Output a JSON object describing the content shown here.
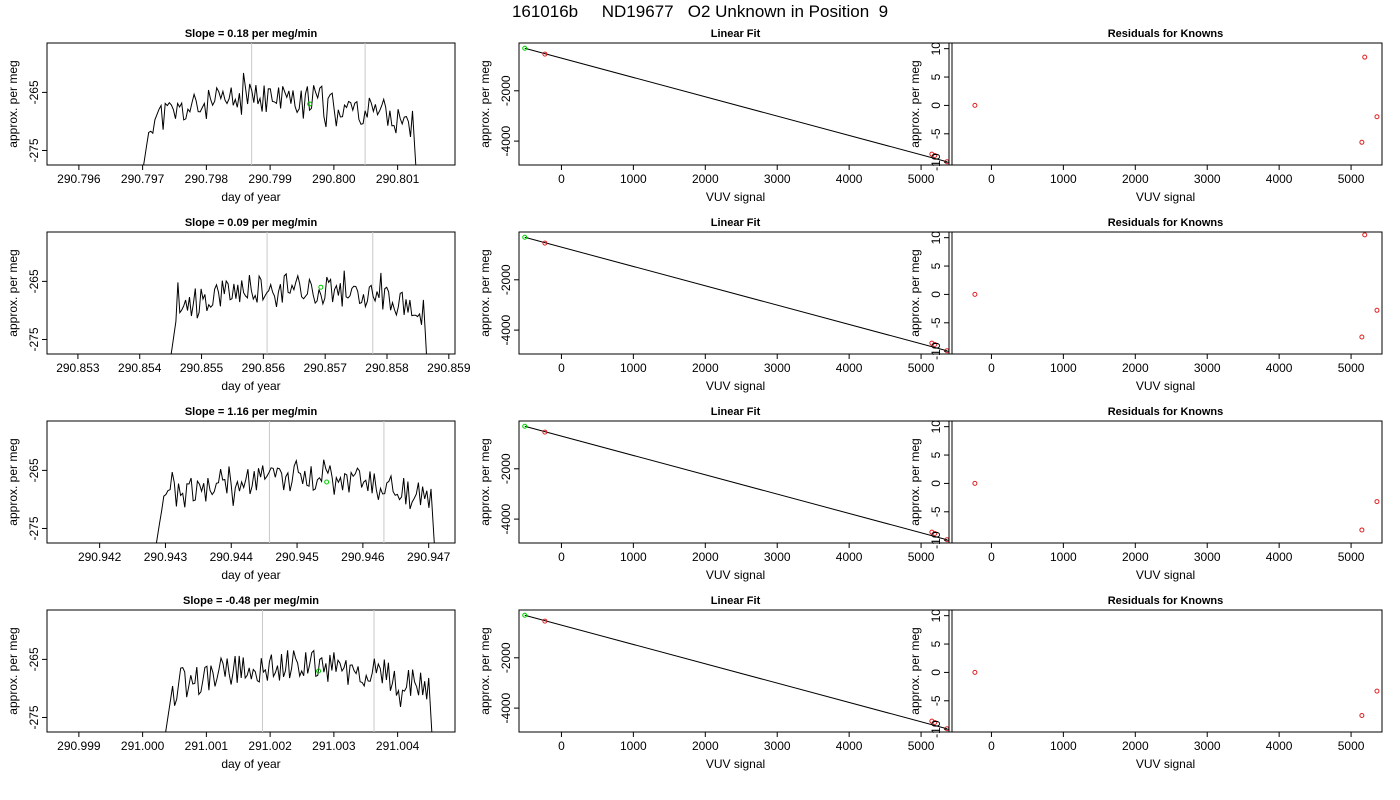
{
  "main_title": "161016b     ND19677   O2 Unknown in Position  9",
  "chart_data": [
    {
      "type": "line",
      "title": "Slope =  0.18  per meg/min",
      "xlabel": "day of year",
      "ylabel": "approx. per meg",
      "xlim": [
        290.7955,
        290.8019
      ],
      "ylim": [
        -277.5,
        -256.5
      ],
      "xticks": [
        290.796,
        290.797,
        290.798,
        290.799,
        290.8,
        290.801
      ],
      "xtick_labels": [
        "290.796",
        "290.797",
        "290.798",
        "290.799",
        "290.800",
        "290.801"
      ],
      "yticks": [
        -265,
        -275
      ],
      "ytick_labels": [
        "-265",
        "-275"
      ],
      "window": [
        290.7968,
        290.8014
      ],
      "vlines": [
        290.79871,
        290.80049
      ],
      "marker": [
        290.79962,
        -267
      ],
      "seed": 11
    },
    {
      "type": "line",
      "title": "Linear Fit",
      "xlabel": "VUV signal",
      "ylabel": "approx. per meg",
      "xlim": [
        -590,
        5430
      ],
      "ylim": [
        -4950,
        -100
      ],
      "xticks": [
        0,
        1000,
        2000,
        3000,
        4000,
        5000
      ],
      "xtick_labels": [
        "0",
        "1000",
        "2000",
        "3000",
        "4000",
        "5000"
      ],
      "yticks": [
        -2000,
        -4000
      ],
      "ytick_labels": [
        "-2000",
        "-4000"
      ],
      "line": {
        "x": [
          -510,
          5360
        ],
        "y": [
          -310,
          -4820
        ]
      },
      "red_points": {
        "x": [
          -230,
          5150,
          5190,
          5360
        ],
        "y": [
          -540,
          -4520,
          -4570,
          -4820
        ]
      },
      "green_points": {
        "x": [
          -510
        ],
        "y": [
          -310
        ]
      }
    },
    {
      "type": "scatter",
      "title": "Residuals for Knowns",
      "xlabel": "VUV signal",
      "ylabel": "approx. per meg",
      "xlim": [
        -590,
        5430
      ],
      "ylim": [
        -10.5,
        11
      ],
      "xticks": [
        0,
        1000,
        2000,
        3000,
        4000,
        5000
      ],
      "xtick_labels": [
        "0",
        "1000",
        "2000",
        "3000",
        "4000",
        "5000"
      ],
      "yticks": [
        10,
        5,
        0,
        -5,
        -10
      ],
      "ytick_labels": [
        "10",
        "5",
        "0",
        "-5",
        "-10"
      ],
      "red_points": {
        "x": [
          -230,
          5150,
          5190,
          5360
        ],
        "y": [
          0,
          -6.5,
          8.5,
          -2
        ]
      }
    },
    {
      "type": "line",
      "title": "Slope =  0.09  per meg/min",
      "xlabel": "day of year",
      "ylabel": "approx. per meg",
      "xlim": [
        290.8525,
        290.8591
      ],
      "ylim": [
        -277.5,
        -256.5
      ],
      "xticks": [
        290.853,
        290.854,
        290.855,
        290.856,
        290.857,
        290.858,
        290.859
      ],
      "xtick_labels": [
        "290.853",
        "290.854",
        "290.855",
        "290.856",
        "290.857",
        "290.858",
        "290.859"
      ],
      "yticks": [
        -265,
        -275
      ],
      "ytick_labels": [
        "-265",
        "-275"
      ],
      "window": [
        290.8543,
        290.85875
      ],
      "vlines": [
        290.85606,
        290.85777
      ],
      "marker": [
        290.85693,
        -266
      ],
      "seed": 23
    },
    {
      "type": "line",
      "title": "Linear Fit",
      "xlabel": "VUV signal",
      "ylabel": "approx. per meg",
      "xlim": [
        -590,
        5430
      ],
      "ylim": [
        -4950,
        -100
      ],
      "xticks": [
        0,
        1000,
        2000,
        3000,
        4000,
        5000
      ],
      "xtick_labels": [
        "0",
        "1000",
        "2000",
        "3000",
        "4000",
        "5000"
      ],
      "yticks": [
        -2000,
        -4000
      ],
      "ytick_labels": [
        "-2000",
        "-4000"
      ],
      "line": {
        "x": [
          -510,
          5360
        ],
        "y": [
          -310,
          -4820
        ]
      },
      "red_points": {
        "x": [
          -230,
          5150,
          5190,
          5360
        ],
        "y": [
          -540,
          -4520,
          -4570,
          -4820
        ]
      },
      "green_points": {
        "x": [
          -510
        ],
        "y": [
          -310
        ]
      }
    },
    {
      "type": "scatter",
      "title": "Residuals for Knowns",
      "xlabel": "VUV signal",
      "ylabel": "approx. per meg",
      "xlim": [
        -590,
        5430
      ],
      "ylim": [
        -10.5,
        11
      ],
      "xticks": [
        0,
        1000,
        2000,
        3000,
        4000,
        5000
      ],
      "xtick_labels": [
        "0",
        "1000",
        "2000",
        "3000",
        "4000",
        "5000"
      ],
      "yticks": [
        10,
        5,
        0,
        -5,
        -10
      ],
      "ytick_labels": [
        "10",
        "5",
        "0",
        "-5",
        "-10"
      ],
      "red_points": {
        "x": [
          -230,
          5150,
          5190,
          5360
        ],
        "y": [
          0,
          -7.5,
          10.5,
          -2.8
        ]
      }
    },
    {
      "type": "line",
      "title": "Slope =  1.16  per meg/min",
      "xlabel": "day of year",
      "ylabel": "approx. per meg",
      "xlim": [
        290.9412,
        290.9474
      ],
      "ylim": [
        -277.5,
        -256.5
      ],
      "xticks": [
        290.942,
        290.943,
        290.944,
        290.945,
        290.946,
        290.947
      ],
      "xtick_labels": [
        "290.942",
        "290.943",
        "290.944",
        "290.945",
        "290.946",
        "290.947"
      ],
      "yticks": [
        -265,
        -275
      ],
      "ytick_labels": [
        "-265",
        "-275"
      ],
      "window": [
        290.94265,
        290.9472
      ],
      "vlines": [
        290.94458,
        290.94632
      ],
      "marker": [
        290.94545,
        -267
      ],
      "seed": 37
    },
    {
      "type": "line",
      "title": "Linear Fit",
      "xlabel": "VUV signal",
      "ylabel": "approx. per meg",
      "xlim": [
        -590,
        5430
      ],
      "ylim": [
        -4950,
        -100
      ],
      "xticks": [
        0,
        1000,
        2000,
        3000,
        4000,
        5000
      ],
      "xtick_labels": [
        "0",
        "1000",
        "2000",
        "3000",
        "4000",
        "5000"
      ],
      "yticks": [
        -2000,
        -4000
      ],
      "ytick_labels": [
        "-2000",
        "-4000"
      ],
      "line": {
        "x": [
          -510,
          5360
        ],
        "y": [
          -310,
          -4820
        ]
      },
      "red_points": {
        "x": [
          -230,
          5150,
          5190,
          5360
        ],
        "y": [
          -540,
          -4520,
          -4570,
          -4820
        ]
      },
      "green_points": {
        "x": [
          -510
        ],
        "y": [
          -310
        ]
      }
    },
    {
      "type": "scatter",
      "title": "Residuals for Knowns",
      "xlabel": "VUV signal",
      "ylabel": "approx. per meg",
      "xlim": [
        -590,
        5430
      ],
      "ylim": [
        -10.5,
        11
      ],
      "xticks": [
        0,
        1000,
        2000,
        3000,
        4000,
        5000
      ],
      "xtick_labels": [
        "0",
        "1000",
        "2000",
        "3000",
        "4000",
        "5000"
      ],
      "yticks": [
        10,
        5,
        0,
        -5,
        -10
      ],
      "ytick_labels": [
        "10",
        "5",
        "0",
        "-5",
        "-10"
      ],
      "red_points": {
        "x": [
          -230,
          5150,
          5360
        ],
        "y": [
          0,
          -8.2,
          -3.2
        ]
      }
    },
    {
      "type": "line",
      "title": "Slope =  -0.48  per meg/min",
      "xlabel": "day of year",
      "ylabel": "approx. per meg",
      "xlim": [
        290.9985,
        291.0049
      ],
      "ylim": [
        -277.5,
        -256.5
      ],
      "xticks": [
        290.999,
        291.0,
        291.001,
        291.002,
        291.003,
        291.004
      ],
      "xtick_labels": [
        "290.999",
        "291.000",
        "291.001",
        "291.002",
        "291.003",
        "291.004"
      ],
      "yticks": [
        -265,
        -275
      ],
      "ytick_labels": [
        "-265",
        "-275"
      ],
      "window": [
        291.00015,
        291.00465
      ],
      "vlines": [
        291.00188,
        291.00363
      ],
      "marker": [
        291.00276,
        -267
      ],
      "seed": 53
    },
    {
      "type": "line",
      "title": "Linear Fit",
      "xlabel": "VUV signal",
      "ylabel": "approx. per meg",
      "xlim": [
        -590,
        5430
      ],
      "ylim": [
        -4950,
        -100
      ],
      "xticks": [
        0,
        1000,
        2000,
        3000,
        4000,
        5000
      ],
      "xtick_labels": [
        "0",
        "1000",
        "2000",
        "3000",
        "4000",
        "5000"
      ],
      "yticks": [
        -2000,
        -4000
      ],
      "ytick_labels": [
        "-2000",
        "-4000"
      ],
      "line": {
        "x": [
          -510,
          5360
        ],
        "y": [
          -310,
          -4820
        ]
      },
      "red_points": {
        "x": [
          -230,
          5150,
          5190,
          5360
        ],
        "y": [
          -540,
          -4520,
          -4570,
          -4820
        ]
      },
      "green_points": {
        "x": [
          -510
        ],
        "y": [
          -310
        ]
      }
    },
    {
      "type": "scatter",
      "title": "Residuals for Knowns",
      "xlabel": "VUV signal",
      "ylabel": "approx. per meg",
      "xlim": [
        -590,
        5430
      ],
      "ylim": [
        -10.5,
        11
      ],
      "xticks": [
        0,
        1000,
        2000,
        3000,
        4000,
        5000
      ],
      "xtick_labels": [
        "0",
        "1000",
        "2000",
        "3000",
        "4000",
        "5000"
      ],
      "yticks": [
        10,
        5,
        0,
        -5,
        -10
      ],
      "ytick_labels": [
        "10",
        "5",
        "0",
        "-5",
        "-10"
      ],
      "red_points": {
        "x": [
          -230,
          5150,
          5360
        ],
        "y": [
          0,
          -7.6,
          -3.3
        ]
      }
    }
  ]
}
